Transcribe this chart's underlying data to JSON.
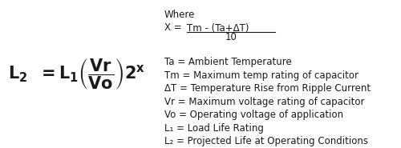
{
  "bg_color": "#ffffff",
  "text_color": "#1a1a1a",
  "definitions": [
    "Ta = Ambient Temperature",
    "Tm = Maximum temp rating of capacitor",
    "ΔT = Temperature Rise from Ripple Current",
    "Vr = Maximum voltage rating of capacitor",
    "Vo = Operating voltage of application",
    "L₁ = Load Life Rating",
    "L₂ = Projected Life at Operating Conditions"
  ],
  "numerator": "Tm - (Ta+ΔT)",
  "denominator": "10",
  "where_label": "Where",
  "x_label": "X = ",
  "fig_width": 5.0,
  "fig_height": 1.85,
  "dpi": 100
}
